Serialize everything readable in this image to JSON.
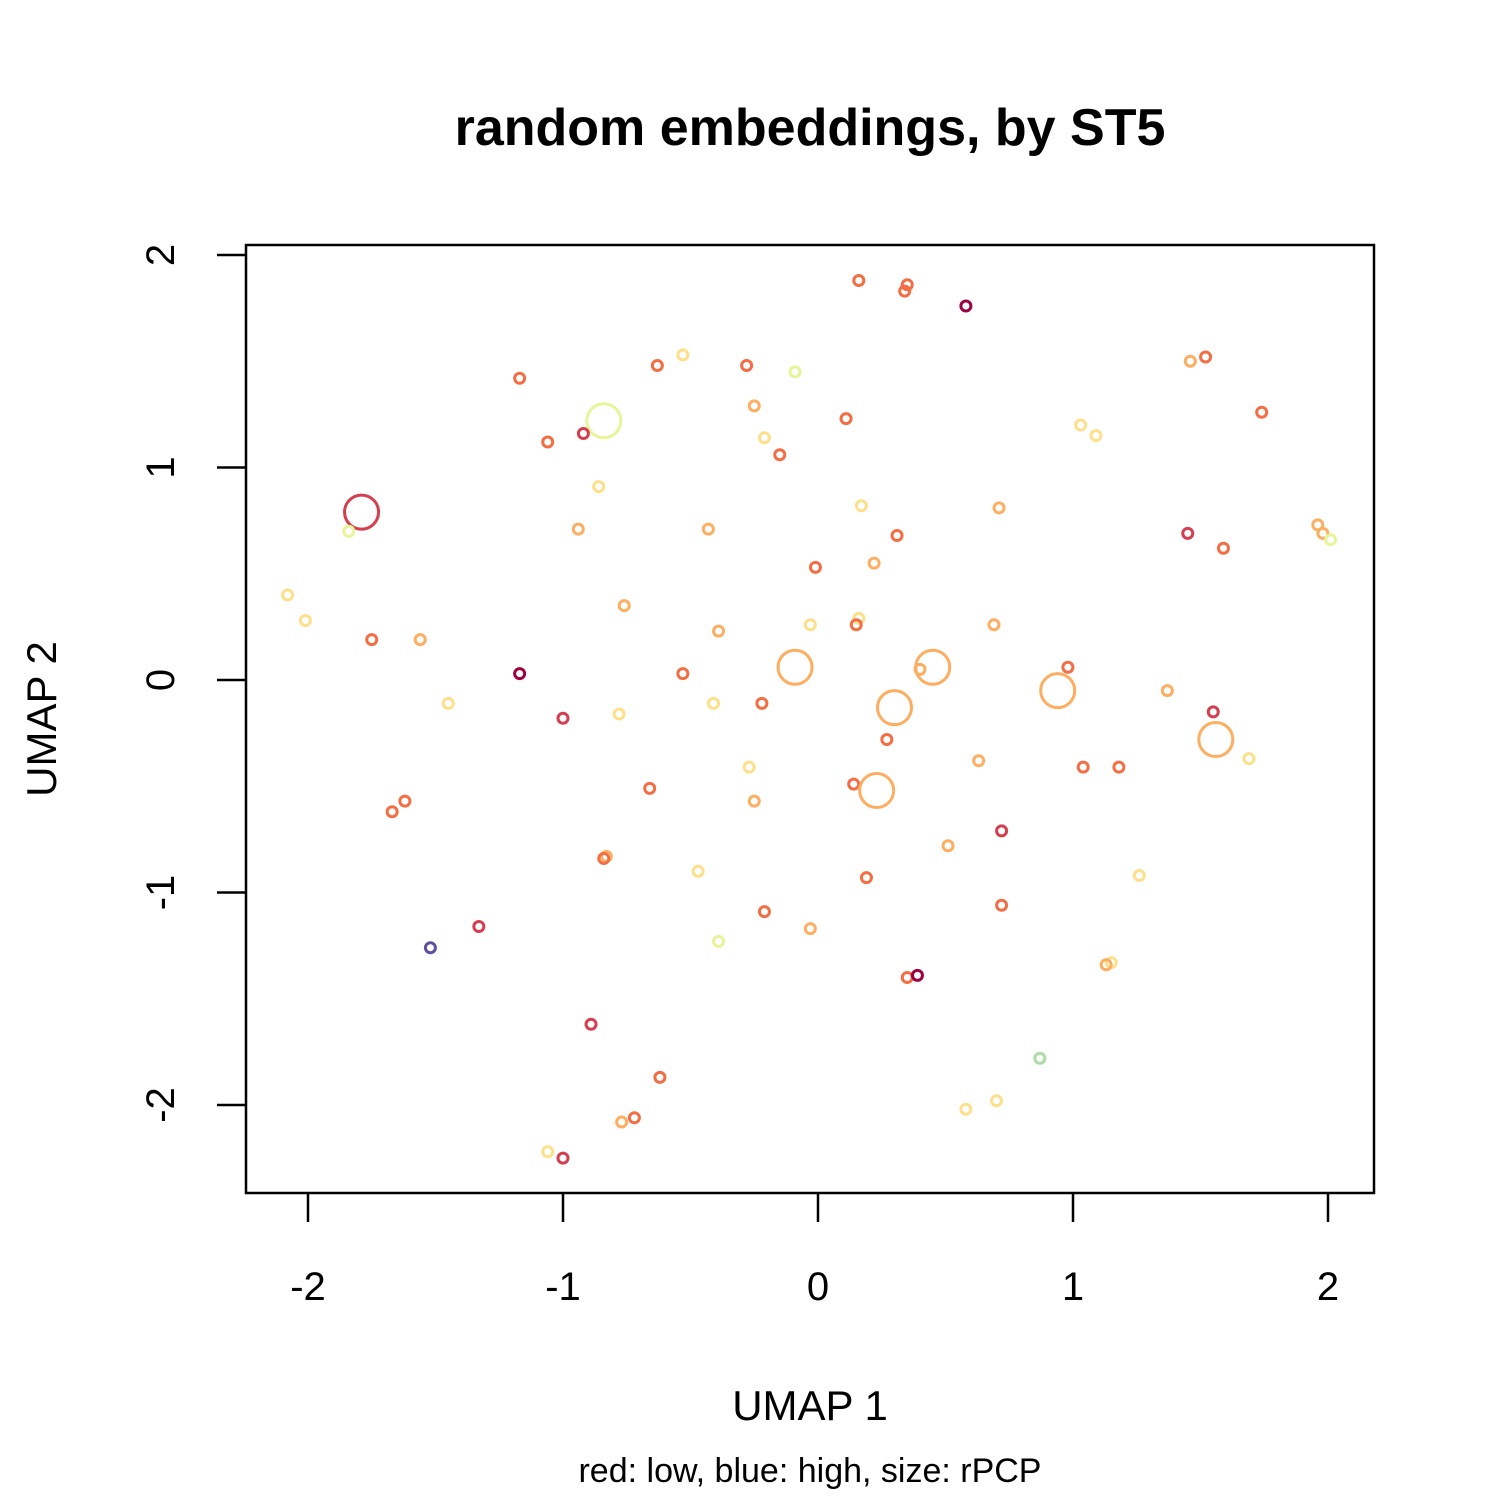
{
  "chart_data": {
    "type": "scatter",
    "title": "random embeddings, by ST5",
    "xlabel": "UMAP 1",
    "ylabel": "UMAP 2",
    "subtitle": "red: low, blue: high, size: rPCP",
    "xlim": [
      -2.25,
      2.2
    ],
    "ylim": [
      -2.4,
      2.05
    ],
    "xticks": [
      -2,
      -1,
      0,
      1,
      2
    ],
    "yticks": [
      -2,
      -1,
      0,
      1,
      2
    ],
    "grid": false,
    "color_scale": {
      "low": "#9e0142",
      "high": "#5e4fa2"
    },
    "points": [
      {
        "x": 0.16,
        "y": 1.88,
        "color": "#f46d43",
        "size": 1
      },
      {
        "x": 0.35,
        "y": 1.86,
        "color": "#f46d43",
        "size": 1
      },
      {
        "x": 0.34,
        "y": 1.83,
        "color": "#f46d43",
        "size": 1
      },
      {
        "x": 0.58,
        "y": 1.76,
        "color": "#9e0142",
        "size": 1
      },
      {
        "x": -0.53,
        "y": 1.53,
        "color": "#fee08b",
        "size": 1
      },
      {
        "x": -0.63,
        "y": 1.48,
        "color": "#f46d43",
        "size": 1
      },
      {
        "x": -0.28,
        "y": 1.48,
        "color": "#f46d43",
        "size": 1
      },
      {
        "x": -0.09,
        "y": 1.45,
        "color": "#e6f598",
        "size": 1
      },
      {
        "x": -1.17,
        "y": 1.42,
        "color": "#f46d43",
        "size": 1
      },
      {
        "x": 1.46,
        "y": 1.5,
        "color": "#fdae61",
        "size": 1
      },
      {
        "x": 1.52,
        "y": 1.52,
        "color": "#f46d43",
        "size": 1
      },
      {
        "x": -0.25,
        "y": 1.29,
        "color": "#fdae61",
        "size": 1
      },
      {
        "x": 1.74,
        "y": 1.26,
        "color": "#f46d43",
        "size": 1
      },
      {
        "x": 0.11,
        "y": 1.23,
        "color": "#f46d43",
        "size": 1
      },
      {
        "x": -0.84,
        "y": 1.22,
        "color": "#e6f598",
        "size": 4
      },
      {
        "x": 1.03,
        "y": 1.2,
        "color": "#fee08b",
        "size": 1
      },
      {
        "x": 1.09,
        "y": 1.15,
        "color": "#fee08b",
        "size": 1
      },
      {
        "x": -0.92,
        "y": 1.16,
        "color": "#d53e4f",
        "size": 1
      },
      {
        "x": -1.06,
        "y": 1.12,
        "color": "#f46d43",
        "size": 1
      },
      {
        "x": -0.21,
        "y": 1.14,
        "color": "#fee08b",
        "size": 1
      },
      {
        "x": -0.15,
        "y": 1.06,
        "color": "#f46d43",
        "size": 1
      },
      {
        "x": -0.86,
        "y": 0.91,
        "color": "#fee08b",
        "size": 1
      },
      {
        "x": 0.17,
        "y": 0.82,
        "color": "#fee08b",
        "size": 1
      },
      {
        "x": 0.71,
        "y": 0.81,
        "color": "#fdae61",
        "size": 1
      },
      {
        "x": -1.79,
        "y": 0.79,
        "color": "#d53e4f",
        "size": 4
      },
      {
        "x": -1.84,
        "y": 0.7,
        "color": "#e6f598",
        "size": 1
      },
      {
        "x": -0.94,
        "y": 0.71,
        "color": "#fdae61",
        "size": 1
      },
      {
        "x": -0.43,
        "y": 0.71,
        "color": "#fdae61",
        "size": 1
      },
      {
        "x": 0.31,
        "y": 0.68,
        "color": "#f46d43",
        "size": 1
      },
      {
        "x": 1.45,
        "y": 0.69,
        "color": "#d53e4f",
        "size": 1
      },
      {
        "x": 1.59,
        "y": 0.62,
        "color": "#f46d43",
        "size": 1
      },
      {
        "x": 1.96,
        "y": 0.73,
        "color": "#fdae61",
        "size": 1
      },
      {
        "x": 1.98,
        "y": 0.69,
        "color": "#fdae61",
        "size": 1
      },
      {
        "x": 2.01,
        "y": 0.66,
        "color": "#e6f598",
        "size": 1
      },
      {
        "x": 0.22,
        "y": 0.55,
        "color": "#fdae61",
        "size": 1
      },
      {
        "x": -0.01,
        "y": 0.53,
        "color": "#f46d43",
        "size": 1
      },
      {
        "x": -2.08,
        "y": 0.4,
        "color": "#fee08b",
        "size": 1
      },
      {
        "x": -2.01,
        "y": 0.28,
        "color": "#fee08b",
        "size": 1
      },
      {
        "x": -0.76,
        "y": 0.35,
        "color": "#fdae61",
        "size": 1
      },
      {
        "x": 0.16,
        "y": 0.29,
        "color": "#fee08b",
        "size": 1
      },
      {
        "x": 0.15,
        "y": 0.26,
        "color": "#f46d43",
        "size": 1
      },
      {
        "x": -0.03,
        "y": 0.26,
        "color": "#fee08b",
        "size": 1
      },
      {
        "x": 0.69,
        "y": 0.26,
        "color": "#fdae61",
        "size": 1
      },
      {
        "x": -0.39,
        "y": 0.23,
        "color": "#fdae61",
        "size": 1
      },
      {
        "x": -1.75,
        "y": 0.19,
        "color": "#f46d43",
        "size": 1
      },
      {
        "x": -1.56,
        "y": 0.19,
        "color": "#fdae61",
        "size": 1
      },
      {
        "x": -0.09,
        "y": 0.06,
        "color": "#fdae61",
        "size": 4
      },
      {
        "x": 0.45,
        "y": 0.06,
        "color": "#fdae61",
        "size": 4
      },
      {
        "x": 0.4,
        "y": 0.05,
        "color": "#fdae61",
        "size": 1
      },
      {
        "x": 0.98,
        "y": 0.06,
        "color": "#f46d43",
        "size": 1
      },
      {
        "x": -1.17,
        "y": 0.03,
        "color": "#9e0142",
        "size": 1
      },
      {
        "x": -0.53,
        "y": 0.03,
        "color": "#f46d43",
        "size": 1
      },
      {
        "x": 0.94,
        "y": -0.05,
        "color": "#fdae61",
        "size": 4
      },
      {
        "x": 1.37,
        "y": -0.05,
        "color": "#fdae61",
        "size": 1
      },
      {
        "x": -1.45,
        "y": -0.11,
        "color": "#fee08b",
        "size": 1
      },
      {
        "x": -0.41,
        "y": -0.11,
        "color": "#fee08b",
        "size": 1
      },
      {
        "x": -0.22,
        "y": -0.11,
        "color": "#f46d43",
        "size": 1
      },
      {
        "x": 0.3,
        "y": -0.13,
        "color": "#fdae61",
        "size": 4
      },
      {
        "x": 1.55,
        "y": -0.15,
        "color": "#d53e4f",
        "size": 1
      },
      {
        "x": -0.78,
        "y": -0.16,
        "color": "#fee08b",
        "size": 1
      },
      {
        "x": -1.0,
        "y": -0.18,
        "color": "#d53e4f",
        "size": 1
      },
      {
        "x": 1.56,
        "y": -0.28,
        "color": "#fdae61",
        "size": 4
      },
      {
        "x": 0.27,
        "y": -0.28,
        "color": "#f46d43",
        "size": 1
      },
      {
        "x": 1.69,
        "y": -0.37,
        "color": "#fee08b",
        "size": 1
      },
      {
        "x": 0.63,
        "y": -0.38,
        "color": "#fdae61",
        "size": 1
      },
      {
        "x": 1.04,
        "y": -0.41,
        "color": "#f46d43",
        "size": 1
      },
      {
        "x": 1.18,
        "y": -0.41,
        "color": "#f46d43",
        "size": 1
      },
      {
        "x": -0.27,
        "y": -0.41,
        "color": "#fee08b",
        "size": 1
      },
      {
        "x": 0.14,
        "y": -0.49,
        "color": "#f46d43",
        "size": 1
      },
      {
        "x": 0.23,
        "y": -0.52,
        "color": "#fdae61",
        "size": 4
      },
      {
        "x": -0.66,
        "y": -0.51,
        "color": "#f46d43",
        "size": 1
      },
      {
        "x": -0.25,
        "y": -0.57,
        "color": "#fdae61",
        "size": 1
      },
      {
        "x": -1.62,
        "y": -0.57,
        "color": "#f46d43",
        "size": 1
      },
      {
        "x": -1.67,
        "y": -0.62,
        "color": "#f46d43",
        "size": 1
      },
      {
        "x": 0.72,
        "y": -0.71,
        "color": "#d53e4f",
        "size": 1
      },
      {
        "x": 0.51,
        "y": -0.78,
        "color": "#fdae61",
        "size": 1
      },
      {
        "x": -0.83,
        "y": -0.83,
        "color": "#fdae61",
        "size": 1
      },
      {
        "x": -0.84,
        "y": -0.84,
        "color": "#f46d43",
        "size": 1
      },
      {
        "x": -0.47,
        "y": -0.9,
        "color": "#fee08b",
        "size": 1
      },
      {
        "x": 0.19,
        "y": -0.93,
        "color": "#f46d43",
        "size": 1
      },
      {
        "x": 1.26,
        "y": -0.92,
        "color": "#fee08b",
        "size": 1
      },
      {
        "x": 0.72,
        "y": -1.06,
        "color": "#f46d43",
        "size": 1
      },
      {
        "x": -0.21,
        "y": -1.09,
        "color": "#f46d43",
        "size": 1
      },
      {
        "x": -1.33,
        "y": -1.16,
        "color": "#d53e4f",
        "size": 1
      },
      {
        "x": -0.03,
        "y": -1.17,
        "color": "#fdae61",
        "size": 1
      },
      {
        "x": -0.39,
        "y": -1.23,
        "color": "#e6f598",
        "size": 1
      },
      {
        "x": -1.52,
        "y": -1.26,
        "color": "#5e4fa2",
        "size": 1
      },
      {
        "x": 1.15,
        "y": -1.33,
        "color": "#fee08b",
        "size": 1
      },
      {
        "x": 1.13,
        "y": -1.34,
        "color": "#fdae61",
        "size": 1
      },
      {
        "x": 0.35,
        "y": -1.4,
        "color": "#f46d43",
        "size": 1
      },
      {
        "x": 0.39,
        "y": -1.39,
        "color": "#9e0142",
        "size": 1
      },
      {
        "x": -0.89,
        "y": -1.62,
        "color": "#d53e4f",
        "size": 1
      },
      {
        "x": 0.87,
        "y": -1.78,
        "color": "#abdda4",
        "size": 1
      },
      {
        "x": -0.62,
        "y": -1.87,
        "color": "#f46d43",
        "size": 1
      },
      {
        "x": 0.7,
        "y": -1.98,
        "color": "#fee08b",
        "size": 1
      },
      {
        "x": 0.58,
        "y": -2.02,
        "color": "#fee08b",
        "size": 1
      },
      {
        "x": -0.77,
        "y": -2.08,
        "color": "#fdae61",
        "size": 1
      },
      {
        "x": -0.72,
        "y": -2.06,
        "color": "#f46d43",
        "size": 1
      },
      {
        "x": -1.06,
        "y": -2.22,
        "color": "#fee08b",
        "size": 1
      },
      {
        "x": -1.0,
        "y": -2.25,
        "color": "#d53e4f",
        "size": 1
      }
    ]
  }
}
